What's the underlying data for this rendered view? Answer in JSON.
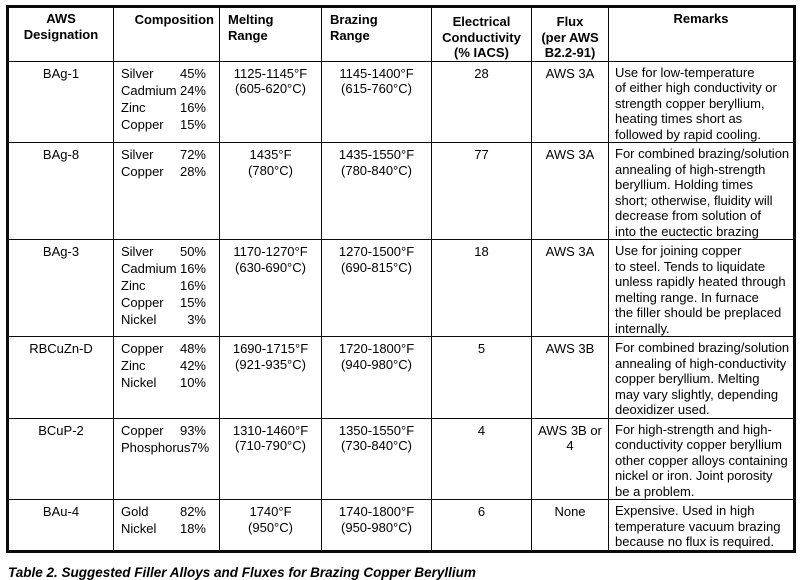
{
  "table": {
    "caption": "Table 2.  Suggested Filler Alloys and Fluxes for Brazing Copper Beryllium",
    "headers": {
      "designation": "AWS\nDesignation",
      "composition": "Composition",
      "melting": "Melting\nRange",
      "brazing": "Brazing\nRange",
      "conductivity": "Electrical\nConductivity\n(% IACS)",
      "flux": "Flux\n(per AWS\nB2.2-91)",
      "remarks": "Remarks"
    },
    "rows": [
      {
        "designation": "BAg-1",
        "composition": [
          {
            "name": "Silver",
            "pct": "45%"
          },
          {
            "name": "Cadmium",
            "pct": "24%"
          },
          {
            "name": "Zinc",
            "pct": "16%"
          },
          {
            "name": "Copper",
            "pct": "15%"
          }
        ],
        "melting": "1125-1145°F\n(605-620°C)",
        "brazing": "1145-1400°F\n(615-760°C)",
        "conductivity": "28",
        "flux": "AWS 3A",
        "remarks": "Use for low-temperature\nof either high conductivity or\nstrength copper beryllium,\nheating times short as\nfollowed by rapid cooling."
      },
      {
        "designation": "BAg-8",
        "composition": [
          {
            "name": "Silver",
            "pct": "72%"
          },
          {
            "name": "Copper",
            "pct": "28%"
          }
        ],
        "melting": "1435°F\n(780°C)",
        "brazing": "1435-1550°F\n(780-840°C)",
        "conductivity": "77",
        "flux": "AWS 3A",
        "remarks": "For combined brazing/solution\nannealing of high-strength\nberyllium.  Holding times\nshort; otherwise, fluidity will\ndecrease from solution of\ninto the euctectic brazing"
      },
      {
        "designation": "BAg-3",
        "composition": [
          {
            "name": "Silver",
            "pct": "50%"
          },
          {
            "name": "Cadmium",
            "pct": "16%"
          },
          {
            "name": "Zinc",
            "pct": "16%"
          },
          {
            "name": "Copper",
            "pct": "15%"
          },
          {
            "name": "Nickel",
            "pct": "3%"
          }
        ],
        "melting": "1170-1270°F\n(630-690°C)",
        "brazing": "1270-1500°F\n(690-815°C)",
        "conductivity": "18",
        "flux": "AWS 3A",
        "remarks": "Use for joining copper\nto steel.  Tends to liquidate\nunless rapidly heated through\nmelting range.  In furnace\nthe filler should be preplaced\ninternally."
      },
      {
        "designation": "RBCuZn-D",
        "composition": [
          {
            "name": "Copper",
            "pct": "48%"
          },
          {
            "name": "Zinc",
            "pct": "42%"
          },
          {
            "name": "Nickel",
            "pct": "10%"
          }
        ],
        "melting": "1690-1715°F\n(921-935°C)",
        "brazing": "1720-1800°F\n(940-980°C)",
        "conductivity": "5",
        "flux": "AWS 3B",
        "remarks": "For combined brazing/solution\nannealing of high-conductivity\ncopper beryllium.  Melting\nmay vary slightly, depending\ndeoxidizer used."
      },
      {
        "designation": "BCuP-2",
        "composition": [
          {
            "name": "Copper",
            "pct": "93%"
          },
          {
            "name": "Phosphorus",
            "pct": "7%"
          }
        ],
        "melting": "1310-1460°F\n(710-790°C)",
        "brazing": "1350-1550°F\n(730-840°C)",
        "conductivity": "4",
        "flux": "AWS 3B or\n4",
        "remarks": "For high-strength and high-\nconductivity copper beryllium\nother copper alloys containing\nnickel or iron.  Joint porosity\nbe a problem."
      },
      {
        "designation": "BAu-4",
        "composition": [
          {
            "name": "Gold",
            "pct": "82%"
          },
          {
            "name": "Nickel",
            "pct": "18%"
          }
        ],
        "melting": "1740°F\n(950°C)",
        "brazing": "1740-1800°F\n(950-980°C)",
        "conductivity": "6",
        "flux": "None",
        "remarks": "Expensive.  Used in high\ntemperature vacuum brazing\nbecause no flux is required."
      }
    ]
  }
}
